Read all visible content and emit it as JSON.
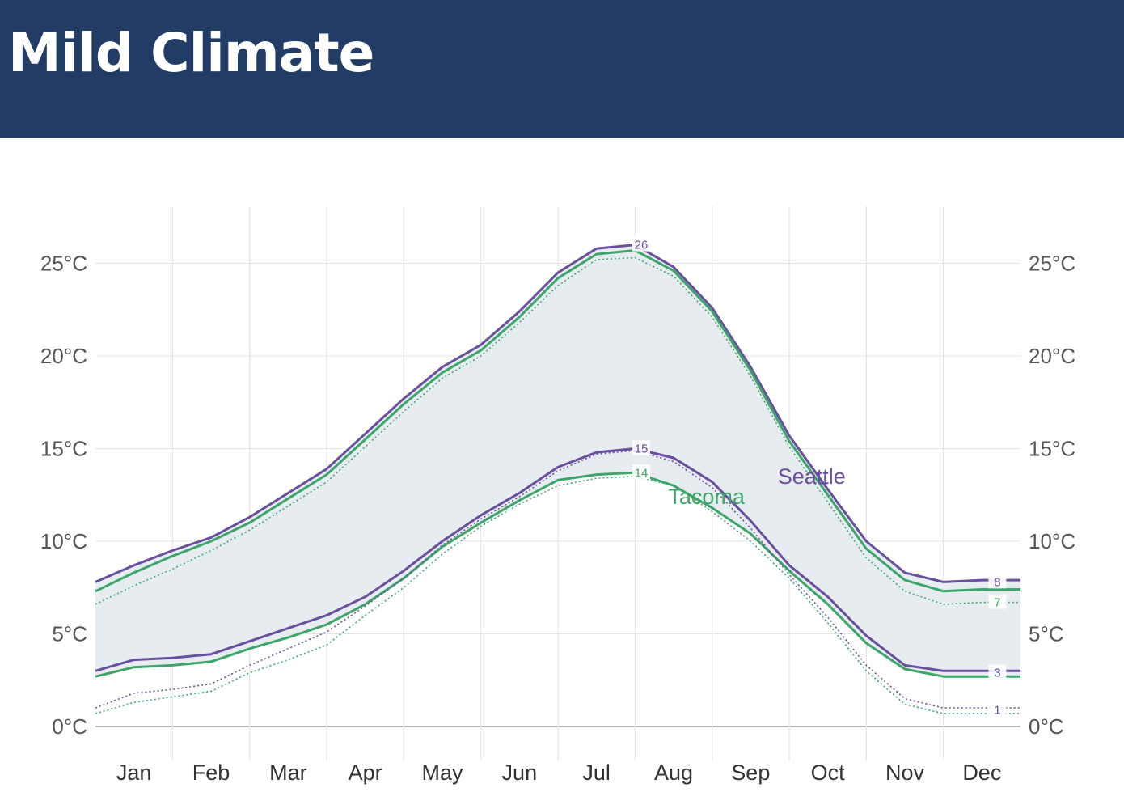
{
  "header": {
    "title": "Mild Climate"
  },
  "chart_data": {
    "type": "line",
    "title": "",
    "xlabel": "",
    "ylabel": "",
    "ylim": [
      0,
      28
    ],
    "y_ticks": [
      "0°C",
      "5°C",
      "10°C",
      "15°C",
      "20°C",
      "25°C"
    ],
    "y_tick_values": [
      0,
      5,
      10,
      15,
      20,
      25
    ],
    "months": [
      "Jan",
      "Feb",
      "Mar",
      "Apr",
      "May",
      "Jun",
      "Jul",
      "Aug",
      "Sep",
      "Oct",
      "Nov",
      "Dec"
    ],
    "x_unit": "month",
    "grid": true,
    "colors": {
      "seattle": "#6a4fa0",
      "tacoma": "#3da56a",
      "band": "#e6ecf0",
      "grid": "#e4e4e4",
      "axis": "#999999",
      "tick_text": "#555555"
    },
    "series": [
      {
        "name": "Seattle",
        "key": "seattle",
        "kind": "high",
        "style": "solid",
        "x": [
          0,
          0.5,
          1,
          1.5,
          2,
          2.5,
          3,
          3.5,
          4,
          4.5,
          5,
          5.5,
          6,
          6.5,
          7,
          7.5,
          8,
          8.5,
          9,
          9.5,
          10,
          10.5,
          11,
          11.5,
          12
        ],
        "y": [
          7.8,
          8.7,
          9.5,
          10.2,
          11.3,
          12.6,
          13.9,
          15.8,
          17.7,
          19.4,
          20.6,
          22.4,
          24.5,
          25.8,
          26.0,
          24.8,
          22.6,
          19.4,
          15.7,
          12.8,
          10.0,
          8.3,
          7.8,
          7.9,
          7.9
        ]
      },
      {
        "name": "Tacoma",
        "key": "tacoma",
        "kind": "high",
        "style": "solid",
        "x": [
          0,
          0.5,
          1,
          1.5,
          2,
          2.5,
          3,
          3.5,
          4,
          4.5,
          5,
          5.5,
          6,
          6.5,
          7,
          7.5,
          8,
          8.5,
          9,
          9.5,
          10,
          10.5,
          11,
          11.5,
          12
        ],
        "y": [
          7.3,
          8.3,
          9.2,
          10.0,
          11.0,
          12.3,
          13.6,
          15.5,
          17.4,
          19.1,
          20.3,
          22.1,
          24.2,
          25.5,
          25.7,
          24.6,
          22.4,
          19.2,
          15.4,
          12.5,
          9.6,
          7.9,
          7.3,
          7.4,
          7.4
        ]
      },
      {
        "name": "",
        "key": "tacoma",
        "kind": "high-dotted",
        "style": "dotted",
        "x": [
          0,
          0.5,
          1,
          1.5,
          2,
          2.5,
          3,
          3.5,
          4,
          4.5,
          5,
          5.5,
          6,
          6.5,
          7,
          7.5,
          8,
          8.5,
          9,
          9.5,
          10,
          10.5,
          11,
          11.5,
          12
        ],
        "y": [
          6.6,
          7.6,
          8.5,
          9.5,
          10.6,
          11.9,
          13.2,
          15.1,
          17.0,
          18.8,
          20.0,
          21.8,
          23.8,
          25.2,
          25.3,
          24.3,
          22.1,
          18.9,
          15.1,
          12.1,
          9.1,
          7.3,
          6.6,
          6.7,
          6.7
        ]
      },
      {
        "name": "Seattle",
        "key": "seattle",
        "kind": "low",
        "style": "solid",
        "x": [
          0,
          0.5,
          1,
          1.5,
          2,
          2.5,
          3,
          3.5,
          4,
          4.5,
          5,
          5.5,
          6,
          6.5,
          7,
          7.5,
          8,
          8.5,
          9,
          9.5,
          10,
          10.5,
          11,
          11.5,
          12
        ],
        "y": [
          3.0,
          3.6,
          3.7,
          3.9,
          4.6,
          5.3,
          6.0,
          7.0,
          8.4,
          10.0,
          11.4,
          12.6,
          14.0,
          14.8,
          15.0,
          14.5,
          13.2,
          11.1,
          8.7,
          7.0,
          4.9,
          3.3,
          3.0,
          3.0,
          3.0
        ]
      },
      {
        "name": "Tacoma",
        "key": "tacoma",
        "kind": "low",
        "style": "solid",
        "x": [
          0,
          0.5,
          1,
          1.5,
          2,
          2.5,
          3,
          3.5,
          4,
          4.5,
          5,
          5.5,
          6,
          6.5,
          7,
          7.5,
          8,
          8.5,
          9,
          9.5,
          10,
          10.5,
          11,
          11.5,
          12
        ],
        "y": [
          2.7,
          3.2,
          3.3,
          3.5,
          4.2,
          4.8,
          5.5,
          6.6,
          8.0,
          9.7,
          11.0,
          12.2,
          13.3,
          13.6,
          13.7,
          13.0,
          11.8,
          10.4,
          8.4,
          6.6,
          4.5,
          3.1,
          2.7,
          2.7,
          2.7
        ]
      },
      {
        "name": "",
        "key": "seattle",
        "kind": "low-dotted",
        "style": "dotted",
        "x": [
          0,
          0.5,
          1,
          1.5,
          2,
          2.5,
          3,
          3.5,
          4,
          4.5,
          5,
          5.5,
          6,
          6.5,
          7,
          7.5,
          8,
          8.5,
          9,
          9.5,
          10,
          10.5,
          11,
          11.5,
          12
        ],
        "y": [
          1.0,
          1.8,
          2.0,
          2.3,
          3.3,
          4.2,
          5.1,
          6.5,
          8.0,
          9.8,
          11.2,
          12.4,
          13.8,
          14.7,
          14.9,
          14.3,
          12.9,
          10.7,
          8.2,
          5.9,
          3.3,
          1.5,
          1.0,
          1.0,
          1.0
        ]
      },
      {
        "name": "",
        "key": "tacoma",
        "kind": "low-dotted",
        "style": "dotted",
        "x": [
          0,
          0.5,
          1,
          1.5,
          2,
          2.5,
          3,
          3.5,
          4,
          4.5,
          5,
          5.5,
          6,
          6.5,
          7,
          7.5,
          8,
          8.5,
          9,
          9.5,
          10,
          10.5,
          11,
          11.5,
          12
        ],
        "y": [
          0.7,
          1.3,
          1.6,
          1.9,
          2.9,
          3.6,
          4.4,
          6.0,
          7.5,
          9.3,
          10.8,
          12.0,
          13.0,
          13.4,
          13.5,
          13.0,
          11.6,
          10.0,
          8.0,
          5.6,
          3.0,
          1.2,
          0.7,
          0.7,
          0.7
        ]
      }
    ],
    "data_labels": [
      {
        "text": "26",
        "key": "seattle",
        "x": 7.08,
        "y": 26.0
      },
      {
        "text": "15",
        "key": "seattle",
        "x": 7.08,
        "y": 15.0
      },
      {
        "text": "14",
        "key": "tacoma",
        "x": 7.08,
        "y": 13.7
      },
      {
        "text": "8",
        "key": "seattle",
        "x": 11.7,
        "y": 7.8
      },
      {
        "text": "7",
        "key": "tacoma",
        "x": 11.7,
        "y": 6.7
      },
      {
        "text": "3",
        "key": "seattle",
        "x": 11.7,
        "y": 2.9
      },
      {
        "text": "1",
        "key": "seattle",
        "x": 11.7,
        "y": 0.9
      }
    ],
    "series_labels": [
      {
        "text": "Seattle",
        "key": "seattle",
        "x": 8.85,
        "y": 13.1
      },
      {
        "text": "Tacoma",
        "key": "tacoma",
        "x": 7.43,
        "y": 12.0
      }
    ]
  }
}
